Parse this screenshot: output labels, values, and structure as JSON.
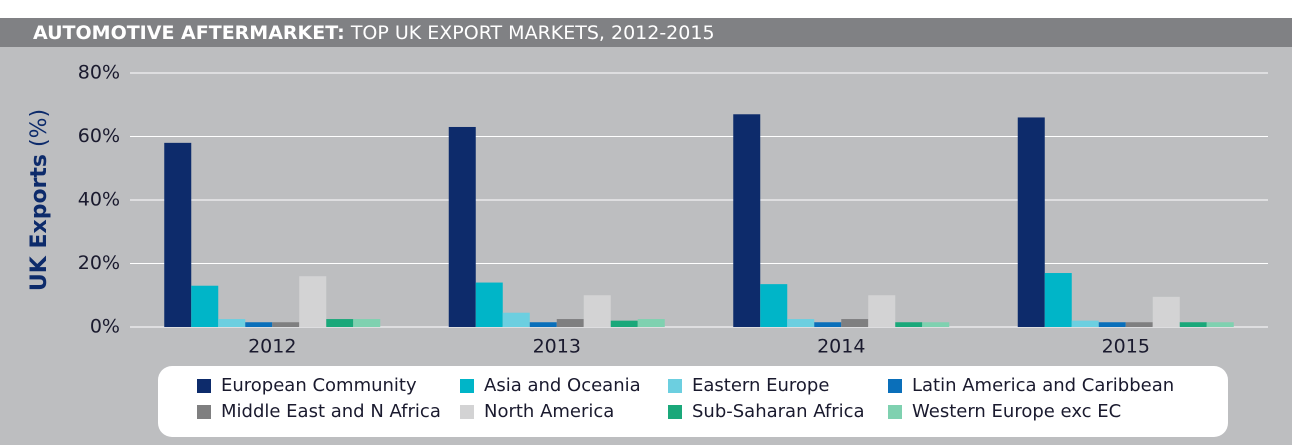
{
  "chart_data": {
    "type": "bar",
    "title_bold": "AUTOMOTIVE AFTERMARKET:",
    "title": "TOP UK EXPORT MARKETS, 2012-2015",
    "y_label_bold": "UK Exports",
    "y_label": "(%)",
    "categories": [
      "2012",
      "2013",
      "2014",
      "2015"
    ],
    "series": [
      {
        "name": "European Community",
        "color": "#0d2b6b",
        "values": [
          58,
          63,
          67,
          66
        ]
      },
      {
        "name": "Asia and Oceania",
        "color": "#00b5c8",
        "values": [
          13,
          14,
          13.5,
          17
        ]
      },
      {
        "name": "Eastern Europe",
        "color": "#6ccfe0",
        "values": [
          2.5,
          4.5,
          2.5,
          2
        ]
      },
      {
        "name": "Latin America and Caribbean",
        "color": "#0a6fba",
        "values": [
          1.5,
          1.5,
          1.5,
          1.5
        ]
      },
      {
        "name": "Middle East and N Africa",
        "color": "#7f7f80",
        "values": [
          1.5,
          2.5,
          2.5,
          1.5
        ]
      },
      {
        "name": "North America",
        "color": "#d3d3d4",
        "values": [
          16,
          10,
          10,
          9.5
        ]
      },
      {
        "name": "Sub-Saharan Africa",
        "color": "#1aa87a",
        "values": [
          2.5,
          2,
          1.5,
          1.5
        ]
      },
      {
        "name": "Western Europe exc EC",
        "color": "#7fd1b0",
        "values": [
          2.5,
          2.5,
          1.5,
          1.5
        ]
      }
    ],
    "ylim": [
      0,
      80
    ],
    "yticks": [
      {
        "value": 0,
        "label": "0%"
      },
      {
        "value": 20,
        "label": "20%"
      },
      {
        "value": 40,
        "label": "40%"
      },
      {
        "value": 60,
        "label": "60%"
      },
      {
        "value": 80,
        "label": "80%"
      }
    ],
    "grid": true
  }
}
